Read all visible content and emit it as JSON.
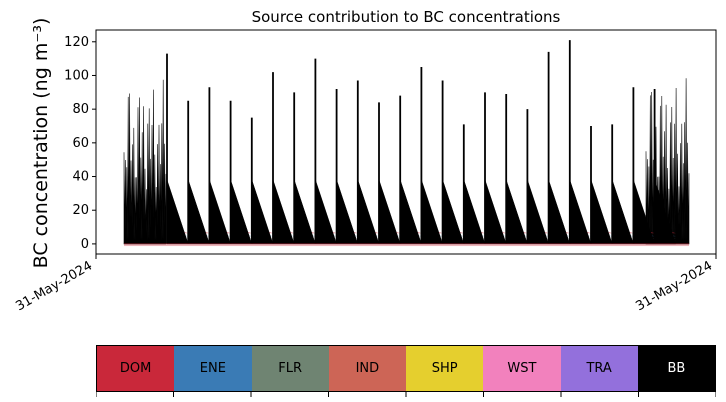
{
  "chart_data": {
    "type": "area",
    "title": "Source contribution to BC concentrations",
    "ylabel": "BC concentration (ng m⁻³)",
    "xlabel": "",
    "ylim": [
      -6,
      127
    ],
    "yticks": [
      0,
      20,
      40,
      60,
      80,
      100,
      120
    ],
    "xtick_labels": [
      "31-May-2024",
      "31-May-2024"
    ],
    "grid": false,
    "stacked": true,
    "peak_days": [
      {
        "day": 1,
        "peak": 113
      },
      {
        "day": 2,
        "peak": 85
      },
      {
        "day": 3,
        "peak": 93
      },
      {
        "day": 4,
        "peak": 85
      },
      {
        "day": 5,
        "peak": 75
      },
      {
        "day": 6,
        "peak": 102
      },
      {
        "day": 7,
        "peak": 90
      },
      {
        "day": 8,
        "peak": 110
      },
      {
        "day": 9,
        "peak": 92
      },
      {
        "day": 10,
        "peak": 97
      },
      {
        "day": 11,
        "peak": 84
      },
      {
        "day": 12,
        "peak": 88
      },
      {
        "day": 13,
        "peak": 105
      },
      {
        "day": 14,
        "peak": 97
      },
      {
        "day": 15,
        "peak": 71
      },
      {
        "day": 16,
        "peak": 90
      },
      {
        "day": 17,
        "peak": 89
      },
      {
        "day": 18,
        "peak": 80
      },
      {
        "day": 19,
        "peak": 114
      },
      {
        "day": 20,
        "peak": 121
      },
      {
        "day": 21,
        "peak": 70
      },
      {
        "day": 22,
        "peak": 71
      },
      {
        "day": 23,
        "peak": 93
      },
      {
        "day": 24,
        "peak": 92
      }
    ],
    "edge_peaks": {
      "start": 99,
      "end": 100
    },
    "series": [
      {
        "name": "DOM",
        "color": "#c9283a"
      },
      {
        "name": "ENE",
        "color": "#3a7bb5"
      },
      {
        "name": "FLR",
        "color": "#6f8472"
      },
      {
        "name": "IND",
        "color": "#cd6556"
      },
      {
        "name": "SHP",
        "color": "#e5cf2e"
      },
      {
        "name": "WST",
        "color": "#f281bd"
      },
      {
        "name": "TRA",
        "color": "#9370dc"
      },
      {
        "name": "BB",
        "color": "#000000"
      }
    ]
  }
}
